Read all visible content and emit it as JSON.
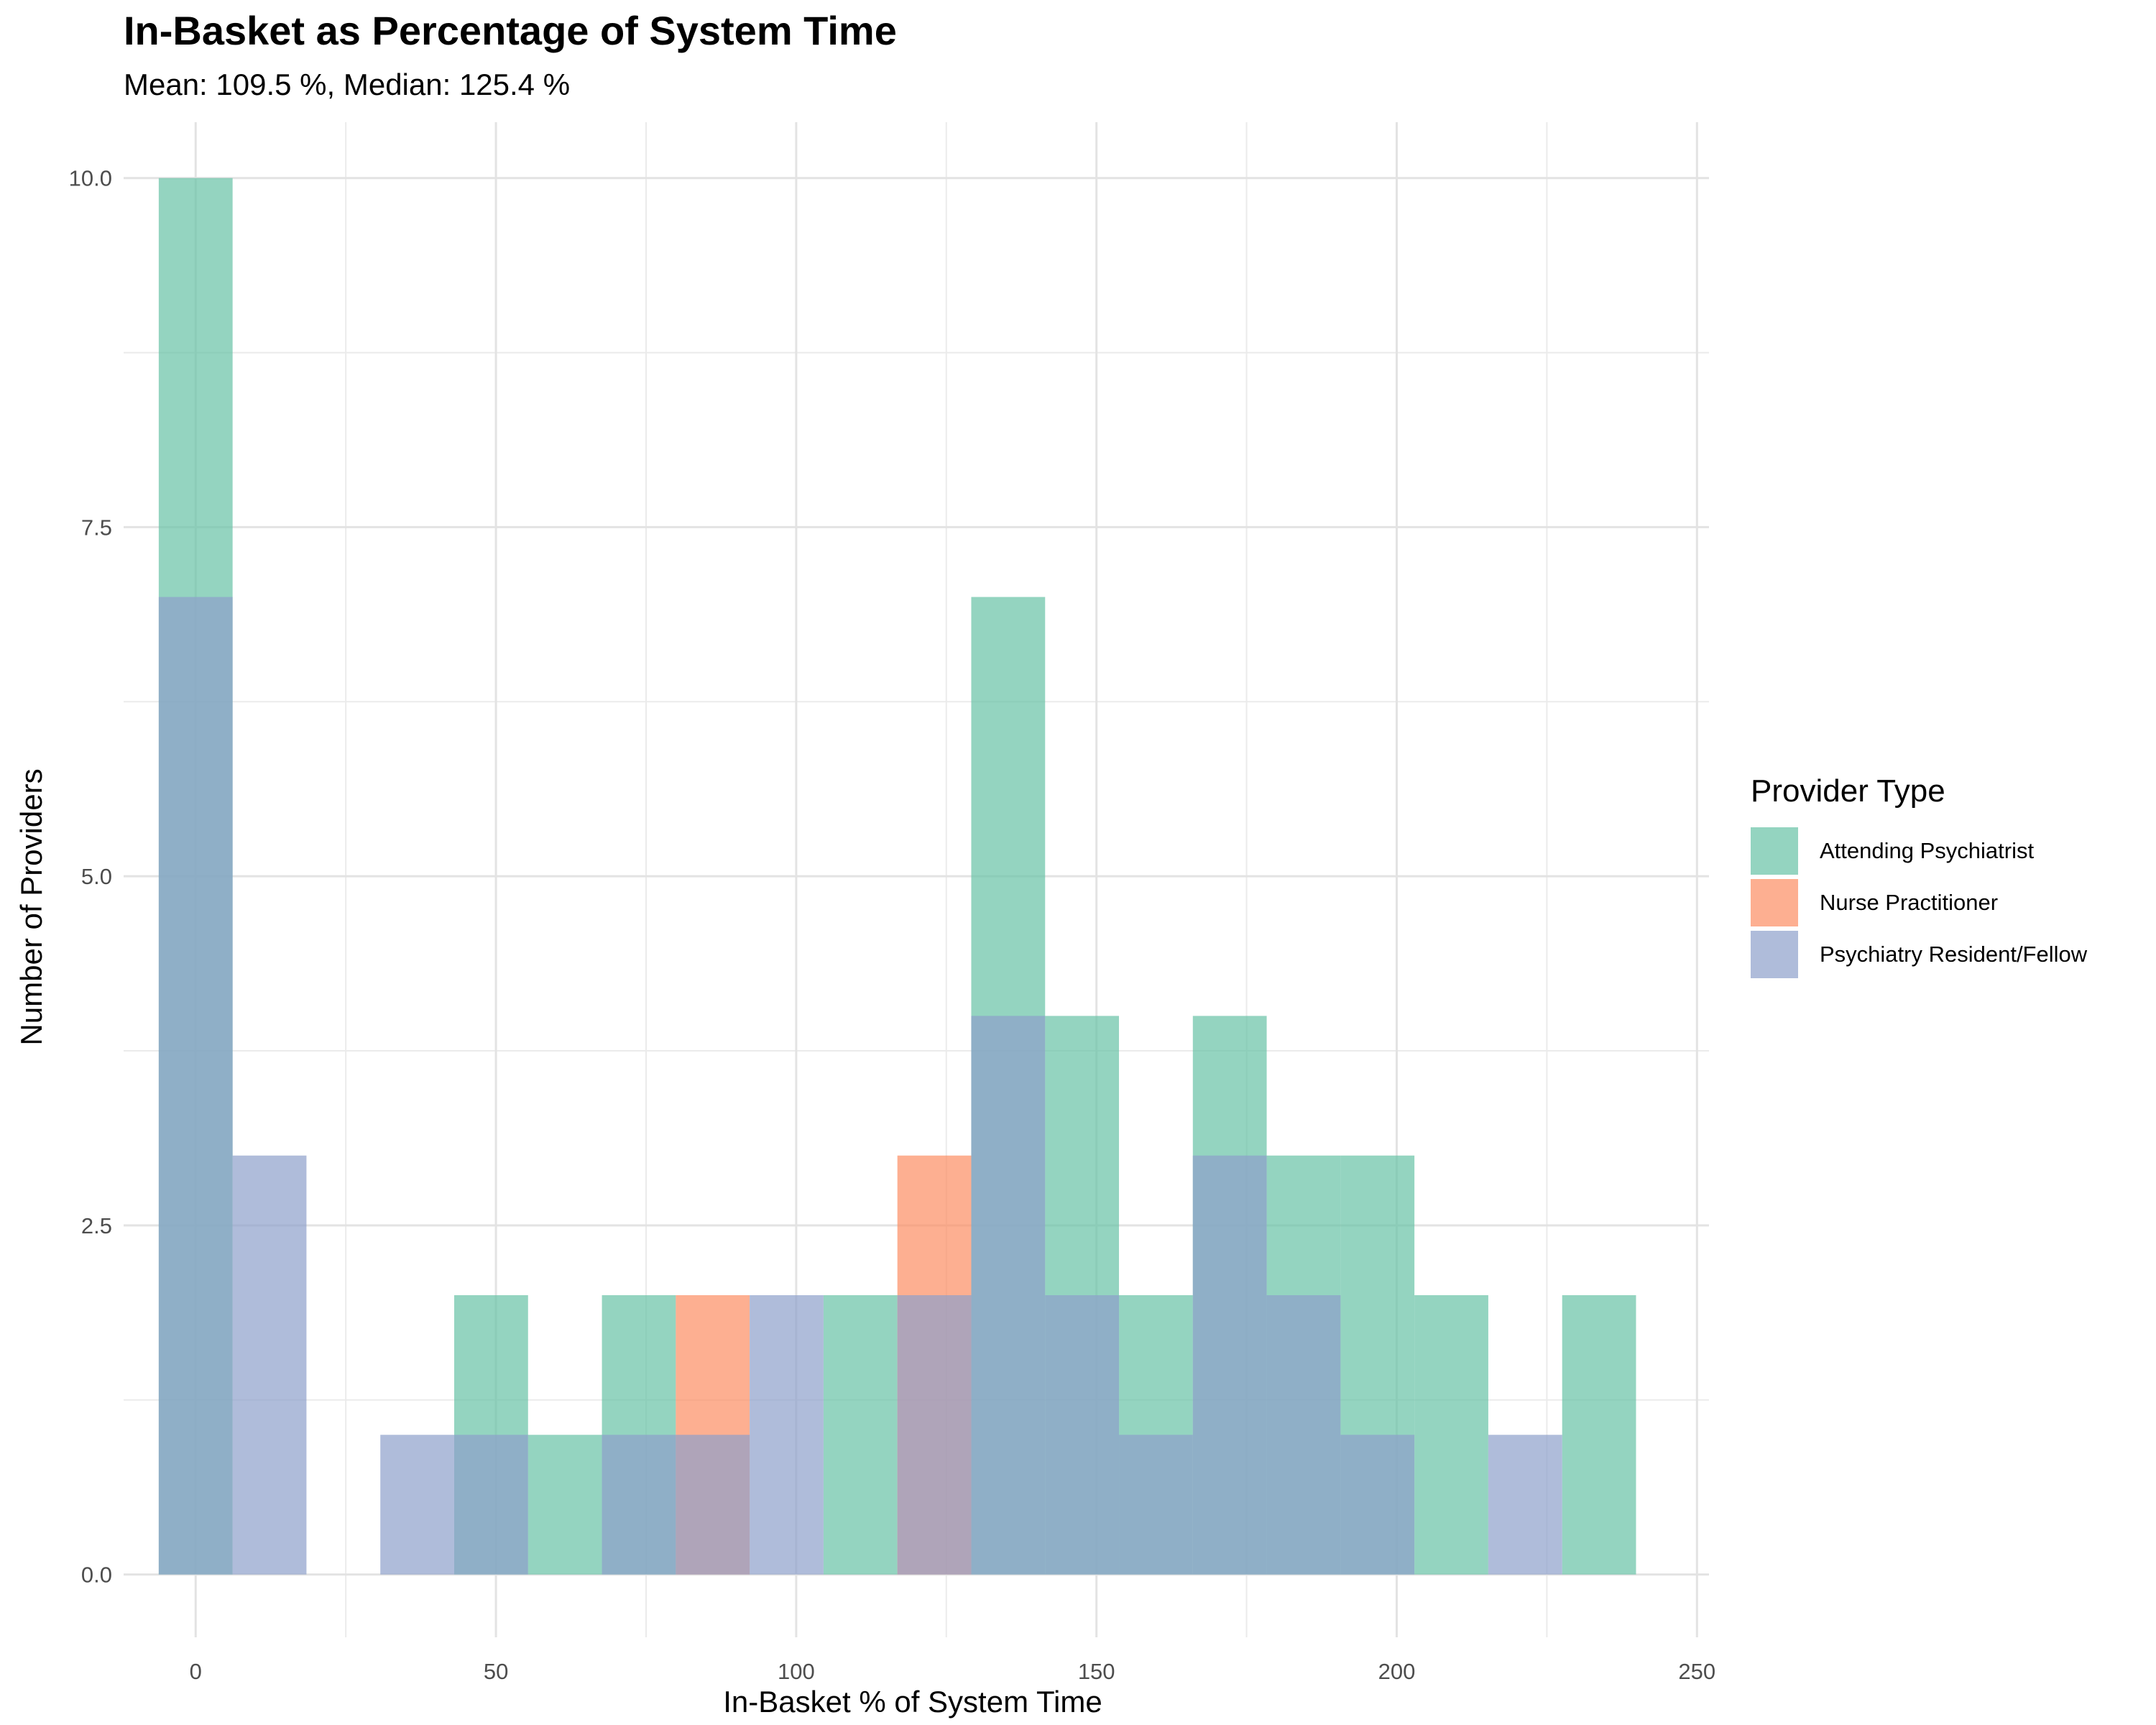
{
  "chart_data": {
    "type": "bar",
    "subtype": "overlaid histogram",
    "title": "In-Basket as Percentage of System Time",
    "subtitle": "Mean: 109.5 %, Median: 125.4 %",
    "xlabel": "In-Basket % of System Time",
    "ylabel": "Number of Providers",
    "xlim": [
      -12,
      252
    ],
    "ylim": [
      -0.45,
      10.4
    ],
    "x_ticks": [
      {
        "value": 0,
        "label": "0"
      },
      {
        "value": 50,
        "label": "50"
      },
      {
        "value": 100,
        "label": "100"
      },
      {
        "value": 150,
        "label": "150"
      },
      {
        "value": 200,
        "label": "200"
      },
      {
        "value": 250,
        "label": "250"
      }
    ],
    "y_ticks": [
      {
        "value": 0,
        "label": "0.0"
      },
      {
        "value": 2.5,
        "label": "2.5"
      },
      {
        "value": 5,
        "label": "5.0"
      },
      {
        "value": 7.5,
        "label": "7.5"
      },
      {
        "value": 10,
        "label": "10.0"
      }
    ],
    "grid": true,
    "bin_width": 12.3,
    "bin_start": -6.15,
    "opacity": 0.7,
    "legend": {
      "title": "Provider Type",
      "position": "right"
    },
    "series": [
      {
        "name": "Attending Psychiatrist",
        "color": "#66C2A5",
        "counts": [
          10,
          0,
          0,
          0,
          2,
          1,
          2,
          0,
          0,
          2,
          0,
          7,
          4,
          2,
          4,
          3,
          3,
          2,
          0,
          2
        ]
      },
      {
        "name": "Nurse Practitioner",
        "color": "#FC8D62",
        "counts": [
          0,
          0,
          0,
          0,
          0,
          0,
          0,
          2,
          0,
          0,
          3,
          0,
          0,
          0,
          0,
          0,
          0,
          0,
          0,
          0
        ]
      },
      {
        "name": "Psychiatry Resident/Fellow",
        "color": "#8DA0CB",
        "counts": [
          7,
          3,
          0,
          1,
          1,
          0,
          1,
          1,
          2,
          0,
          2,
          4,
          2,
          1,
          3,
          2,
          1,
          0,
          1,
          0
        ]
      }
    ]
  }
}
